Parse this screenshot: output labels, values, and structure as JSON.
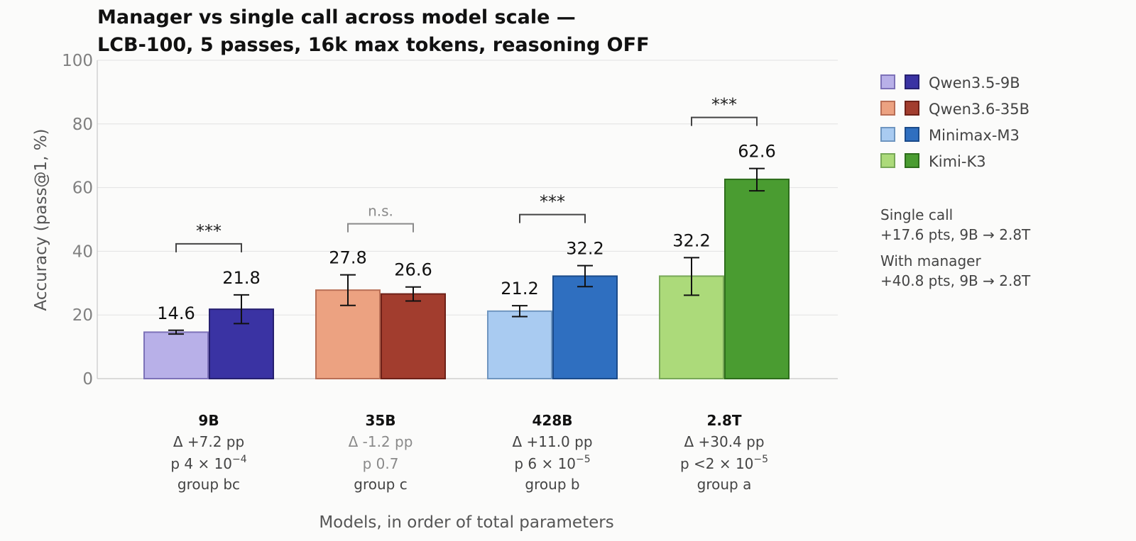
{
  "chart_data": {
    "type": "bar",
    "title": [
      "Manager vs single call across model scale —",
      "LCB-100, 5 passes, 16k max tokens, reasoning OFF"
    ],
    "ylabel": "Accuracy (pass@1, %)",
    "xlabel": "Models, in order of total parameters",
    "ylim": [
      0,
      100
    ],
    "yticks": [
      0,
      20,
      40,
      60,
      80,
      100
    ],
    "grid": true,
    "legend_position": "right",
    "groups": [
      {
        "category": "9B",
        "model": "Qwen3.5-9B",
        "single": {
          "value": 14.6,
          "err_low": 14.0,
          "err_high": 15.2,
          "label": "14.6"
        },
        "manager": {
          "value": 21.8,
          "err_low": 17.3,
          "err_high": 26.3,
          "label": "21.8"
        },
        "delta": "Δ +7.2 pp",
        "p_base": "p 4 × 10",
        "p_exp": "−4",
        "group": "group bc",
        "sig": "***",
        "sig_muted": false,
        "colors": {
          "single": "#b8b0e8",
          "single_edge": "#7d72b8",
          "manager": "#3a33a3",
          "manager_edge": "#262070"
        }
      },
      {
        "category": "35B",
        "model": "Qwen3.6-35B",
        "single": {
          "value": 27.8,
          "err_low": 23.0,
          "err_high": 32.6,
          "label": "27.8"
        },
        "manager": {
          "value": 26.6,
          "err_low": 24.4,
          "err_high": 28.8,
          "label": "26.6"
        },
        "delta": "Δ -1.2 pp",
        "p_base": "p 0.7",
        "p_exp": "",
        "group": "group c",
        "sig": "n.s.",
        "sig_muted": true,
        "colors": {
          "single": "#eca281",
          "single_edge": "#b96f56",
          "manager": "#a23d2e",
          "manager_edge": "#6e2118"
        }
      },
      {
        "category": "428B",
        "model": "Minimax-M3",
        "single": {
          "value": 21.2,
          "err_low": 19.5,
          "err_high": 22.9,
          "label": "21.2"
        },
        "manager": {
          "value": 32.2,
          "err_low": 28.9,
          "err_high": 35.5,
          "label": "32.2"
        },
        "delta": "Δ +11.0 pp",
        "p_base": "p 6 × 10",
        "p_exp": "−5",
        "group": "group b",
        "sig": "***",
        "sig_muted": false,
        "colors": {
          "single": "#a9cbf1",
          "single_edge": "#6f96c0",
          "manager": "#2f6fc0",
          "manager_edge": "#1b4b8a"
        }
      },
      {
        "category": "2.8T",
        "model": "Kimi-K3",
        "single": {
          "value": 32.2,
          "err_low": 26.2,
          "err_high": 38.0,
          "label": "32.2"
        },
        "manager": {
          "value": 62.6,
          "err_low": 59.0,
          "err_high": 66.0,
          "label": "62.6"
        },
        "delta": "Δ +30.4 pp",
        "p_base": "p <2 × 10",
        "p_exp": "−5",
        "group": "group a",
        "sig": "***",
        "sig_muted": false,
        "colors": {
          "single": "#acda7a",
          "single_edge": "#78a858",
          "manager": "#4a9c31",
          "manager_edge": "#2e6d1c"
        }
      }
    ],
    "legend": [
      "Qwen3.5-9B",
      "Qwen3.6-35B",
      "Minimax-M3",
      "Kimi-K3"
    ],
    "notes": [
      {
        "label": "Single call",
        "value": "+17.6 pts, 9B → 2.8T"
      },
      {
        "label": "With manager",
        "value": "+40.8 pts, 9B → 2.8T"
      }
    ]
  }
}
